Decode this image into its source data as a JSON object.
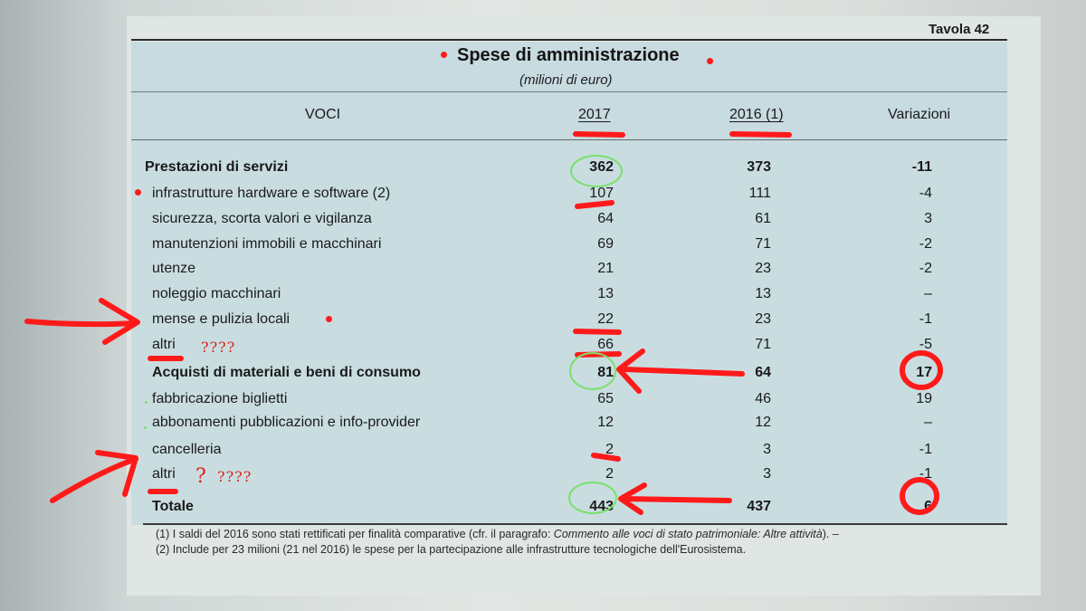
{
  "table": {
    "number": "Tavola 42",
    "title": "Spese di amministrazione",
    "subtitle": "(milioni di euro)",
    "columns": [
      "VOCI",
      "2017",
      "2016 (1)",
      "Variazioni"
    ],
    "rows": [
      {
        "label": "Prestazioni di servizi",
        "v2017": "362",
        "v2016": "373",
        "var": "-11"
      },
      {
        "label": "infrastrutture hardware e software (2)",
        "v2017": "107",
        "v2016": "111",
        "var": "-4"
      },
      {
        "label": "sicurezza, scorta valori e vigilanza",
        "v2017": "64",
        "v2016": "61",
        "var": "3"
      },
      {
        "label": "manutenzioni immobili e macchinari",
        "v2017": "69",
        "v2016": "71",
        "var": "-2"
      },
      {
        "label": "utenze",
        "v2017": "21",
        "v2016": "23",
        "var": "-2"
      },
      {
        "label": "noleggio macchinari",
        "v2017": "13",
        "v2016": "13",
        "var": "–"
      },
      {
        "label": "mense e pulizia locali",
        "v2017": "22",
        "v2016": "23",
        "var": "-1"
      },
      {
        "label": "altri",
        "v2017": "66",
        "v2016": "71",
        "var": "-5"
      },
      {
        "label": "Acquisti di materiali e beni di consumo",
        "v2017": "81",
        "v2016": "64",
        "var": "17"
      },
      {
        "label": "fabbricazione biglietti",
        "v2017": "65",
        "v2016": "46",
        "var": "19"
      },
      {
        "label": "abbonamenti pubblicazioni e info-provider",
        "v2017": "12",
        "v2016": "12",
        "var": "–"
      },
      {
        "label": "cancelleria",
        "v2017": "2",
        "v2016": "3",
        "var": "-1"
      },
      {
        "label": "altri",
        "v2017": "2",
        "v2016": "3",
        "var": "-1"
      },
      {
        "label": "Totale",
        "v2017": "443",
        "v2016": "437",
        "var": "6"
      }
    ],
    "notes": {
      "note1_a": "(1) I saldi del 2016 sono stati rettificati per finalità comparative (cfr. il paragrafo: ",
      "note1_b": "Commento alle voci di stato patrimoniale: Altre attività",
      "note1_c": "). –",
      "note2": "(2) Include per 23 milioni (21 nel 2016) le spese per la partecipazione alle infrastrutture tecnologiche dell'Eurosistema."
    }
  },
  "annotations": {
    "q1": "????",
    "q2": "?",
    "q3": "????",
    "ink_red": "#ff1a1a",
    "ink_green": "#7ae06b"
  }
}
